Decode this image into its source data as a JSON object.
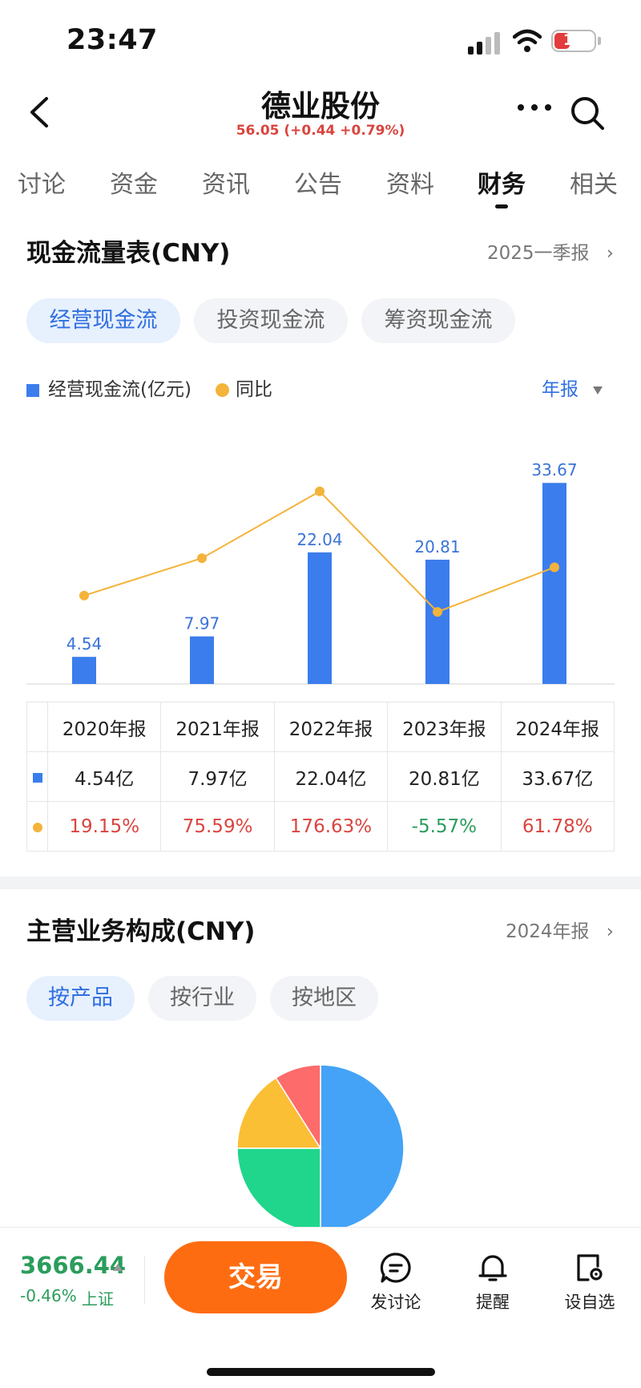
{
  "status": {
    "time": "23:47",
    "battery": "18"
  },
  "header": {
    "title": "德业股份",
    "price_line": "56.05 (+0.44 +0.79%)"
  },
  "tabs": [
    "讨论",
    "资金",
    "资讯",
    "公告",
    "资料",
    "财务",
    "相关"
  ],
  "active_tab_index": 5,
  "cashflow": {
    "title": "现金流量表(CNY)",
    "period": "2025一季报",
    "pills": [
      "经营现金流",
      "投资现金流",
      "筹资现金流"
    ],
    "active_pill_index": 0,
    "legend_bar": "经营现金流(亿元)",
    "legend_line": "同比",
    "period_toggle": "年报"
  },
  "chart_data": {
    "type": "bar",
    "categories": [
      "2020年报",
      "2021年报",
      "2022年报",
      "2023年报",
      "2024年报"
    ],
    "series": [
      {
        "name": "经营现金流(亿元)",
        "type": "bar",
        "values": [
          4.54,
          7.97,
          22.04,
          20.81,
          33.67
        ],
        "color": "#3b7ded"
      },
      {
        "name": "同比",
        "type": "line",
        "values": [
          19.15,
          75.59,
          176.63,
          -5.57,
          61.78
        ],
        "color": "#f4b33a"
      }
    ],
    "data_labels": [
      "4.54",
      "7.97",
      "22.04",
      "20.81",
      "33.67"
    ]
  },
  "table": {
    "headers": [
      "2020年报",
      "2021年报",
      "2022年报",
      "2023年报",
      "2024年报"
    ],
    "values_row": [
      "4.54亿",
      "7.97亿",
      "22.04亿",
      "20.81亿",
      "33.67亿"
    ],
    "yoy_row": [
      "19.15%",
      "75.59%",
      "176.63%",
      "-5.57%",
      "61.78%"
    ]
  },
  "business": {
    "title": "主营业务构成(CNY)",
    "period": "2024年报",
    "pills": [
      "按产品",
      "按行业",
      "按地区"
    ],
    "active_pill_index": 0
  },
  "pie_data": {
    "type": "pie",
    "note": "visual proportions only; no labels shown",
    "values": [
      0.5,
      0.25,
      0.16,
      0.09
    ],
    "colors": [
      "#44a3f7",
      "#1fd68c",
      "#fbbf36",
      "#fd6b6b"
    ]
  },
  "bottom": {
    "index_value": "3666.44",
    "index_change": "-0.46%",
    "index_name": "上证",
    "trade": "交易",
    "actions": [
      "发讨论",
      "提醒",
      "设自选"
    ]
  },
  "colors": {
    "accent": "#2f6fe0",
    "bar": "#3b7ded",
    "line": "#f4b33a",
    "up": "#d9453f",
    "down": "#2a9d5c",
    "trade": "#fe6c12"
  }
}
